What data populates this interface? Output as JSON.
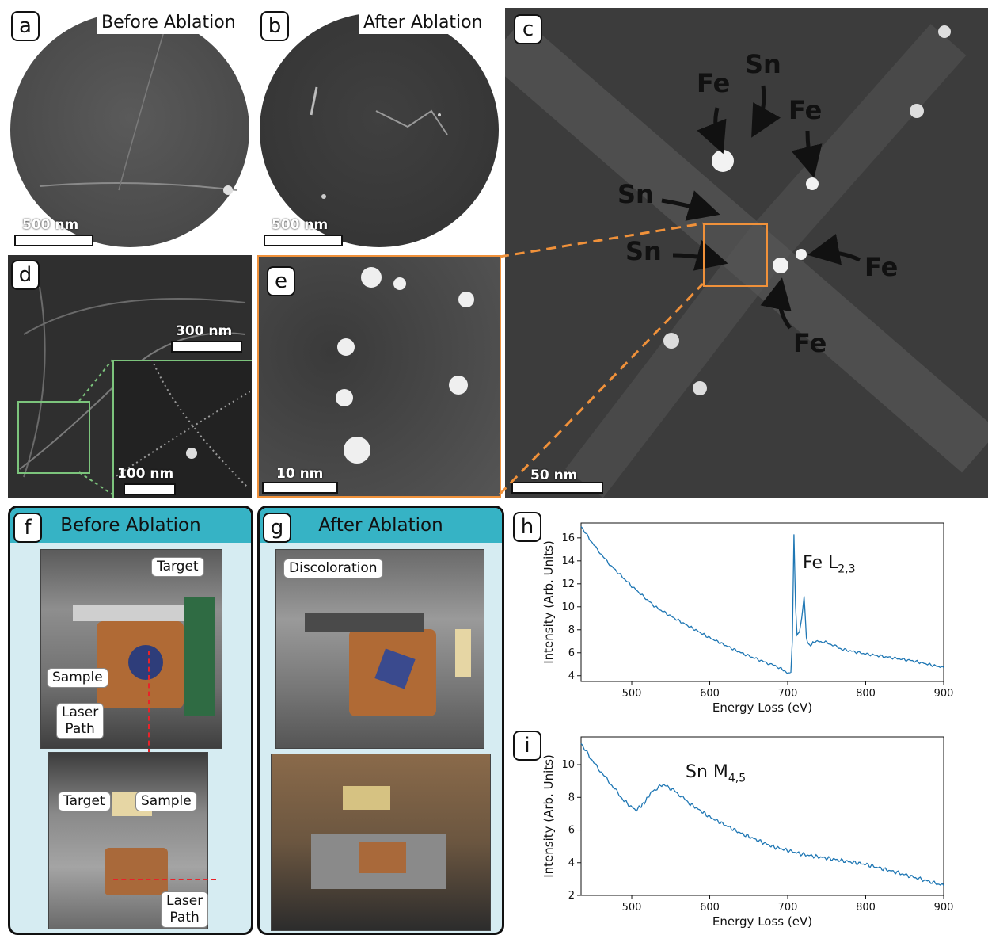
{
  "panels": {
    "a": {
      "letter": "a",
      "title": "Before Ablation",
      "scale": "500 nm"
    },
    "b": {
      "letter": "b",
      "title": "After Ablation",
      "scale": "500 nm"
    },
    "c": {
      "letter": "c",
      "scale": "50 nm",
      "labels": [
        "Fe",
        "Sn",
        "Fe",
        "Sn",
        "Sn",
        "Fe",
        "Fe"
      ]
    },
    "d": {
      "letter": "d",
      "scale_main": "300 nm",
      "scale_inset": "100 nm"
    },
    "e": {
      "letter": "e",
      "scale": "10 nm"
    },
    "f": {
      "letter": "f",
      "title": "Before Ablation",
      "callouts": [
        "Target",
        "Sample",
        "Laser",
        "Path",
        "Target",
        "Sample",
        "Laser",
        "Path"
      ]
    },
    "g": {
      "letter": "g",
      "title": "After Ablation",
      "callouts": [
        "Discoloration"
      ]
    },
    "h": {
      "letter": "h",
      "annotation": "Fe L",
      "annotation_sub": "2,3"
    },
    "i": {
      "letter": "i",
      "annotation": "Sn M",
      "annotation_sub": "4,5"
    }
  },
  "colors": {
    "teal_header": "#36b3c5",
    "panel_bg": "#d6ecf2",
    "line": "#1f77b4",
    "orange": "#f0913a",
    "green": "#7cc47c"
  },
  "chart_data": [
    {
      "type": "line",
      "panel": "h",
      "xlabel": "Energy Loss (eV)",
      "ylabel": "Intensity (Arb. Units)",
      "xlim": [
        435,
        900
      ],
      "ylim": [
        3.5,
        17.3
      ],
      "xticks": [
        500,
        600,
        700,
        800,
        900
      ],
      "yticks": [
        4,
        6,
        8,
        10,
        12,
        14,
        16
      ],
      "x": [
        435,
        450,
        470,
        500,
        530,
        560,
        600,
        640,
        670,
        690,
        700,
        704,
        706,
        708,
        710,
        712,
        715,
        718,
        721,
        724,
        728,
        735,
        750,
        770,
        800,
        830,
        860,
        900
      ],
      "y": [
        17.0,
        15.5,
        13.8,
        11.8,
        10.0,
        8.8,
        7.3,
        6.0,
        5.2,
        4.7,
        4.2,
        4.3,
        7.0,
        16.3,
        10.0,
        7.5,
        7.8,
        9.0,
        11.0,
        7.2,
        6.6,
        7.0,
        6.9,
        6.3,
        5.9,
        5.6,
        5.3,
        4.7
      ]
    },
    {
      "type": "line",
      "panel": "i",
      "xlabel": "Energy Loss (eV)",
      "ylabel": "Intensity (Arb. Units)",
      "xlim": [
        435,
        900
      ],
      "ylim": [
        2,
        11.7
      ],
      "xticks": [
        500,
        600,
        700,
        800,
        900
      ],
      "yticks": [
        2,
        4,
        6,
        8,
        10
      ],
      "x": [
        435,
        450,
        470,
        490,
        505,
        515,
        525,
        540,
        555,
        575,
        600,
        640,
        680,
        720,
        760,
        800,
        840,
        870,
        900
      ],
      "y": [
        11.3,
        10.2,
        9.0,
        7.8,
        7.2,
        7.6,
        8.3,
        8.8,
        8.4,
        7.6,
        6.8,
        5.8,
        5.0,
        4.5,
        4.2,
        3.9,
        3.4,
        3.0,
        2.6
      ]
    }
  ]
}
